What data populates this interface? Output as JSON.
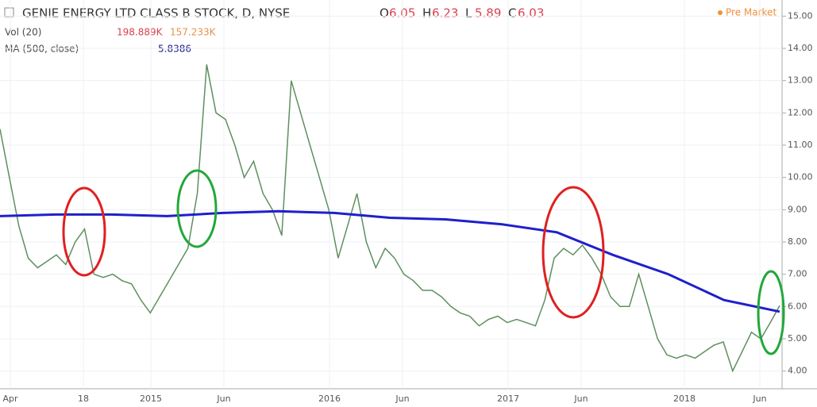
{
  "chart_data": {
    "type": "line",
    "title": "GENIE ENERGY LTD CLASS B STOCK, D, NYSE",
    "ohlc": [
      {
        "label": "O",
        "value": "6.05"
      },
      {
        "label": "H",
        "value": "6.23"
      },
      {
        "label": "L",
        "value": "5.89"
      },
      {
        "label": "C",
        "value": "6.03"
      }
    ],
    "volume_label": "Vol (20)",
    "volume_values": [
      "198.889K",
      "157.233K"
    ],
    "ma_label": "MA (500, close)",
    "ma_value": "5.8386",
    "session": "Pre Market",
    "x_labels": [
      "Apr",
      "18",
      "2015",
      "Jun",
      "2016",
      "Jun",
      "2017",
      "Jun",
      "2018",
      "Jun"
    ],
    "ylim": [
      3.45,
      15.5
    ],
    "yticks": [
      {
        "value": 15,
        "label": "15.00"
      },
      {
        "value": 14,
        "label": "14.00"
      },
      {
        "value": 13,
        "label": "13.00"
      },
      {
        "value": 12,
        "label": "12.00"
      },
      {
        "value": 11,
        "label": "11.00"
      },
      {
        "value": 10,
        "label": "10.00"
      },
      {
        "value": 9,
        "label": "9.00"
      },
      {
        "value": 8,
        "label": "8.00"
      },
      {
        "value": 7,
        "label": "7.00"
      },
      {
        "value": 6,
        "label": "6.00"
      },
      {
        "value": 5,
        "label": "5.00"
      },
      {
        "value": 4,
        "label": "4.00"
      }
    ],
    "grid": true,
    "series": [
      {
        "name": "Price",
        "color": "#5f8f5f",
        "values": [
          11.5,
          10.0,
          8.5,
          7.5,
          7.2,
          7.4,
          7.6,
          7.3,
          8.0,
          8.4,
          7.0,
          6.9,
          7.0,
          6.8,
          6.7,
          6.2,
          5.8,
          6.3,
          6.8,
          7.3,
          7.8,
          9.5,
          13.5,
          12.0,
          11.8,
          11.0,
          10.0,
          10.5,
          9.5,
          9.0,
          8.2,
          13.0,
          12.0,
          11.0,
          10.0,
          9.0,
          7.5,
          8.5,
          9.5,
          8.0,
          7.2,
          7.8,
          7.5,
          7.0,
          6.8,
          6.5,
          6.5,
          6.3,
          6.0,
          5.8,
          5.7,
          5.4,
          5.6,
          5.7,
          5.5,
          5.6,
          5.5,
          5.4,
          6.2,
          7.5,
          7.8,
          7.6,
          7.9,
          7.5,
          7.0,
          6.3,
          6.0,
          6.0,
          7.0,
          6.0,
          5.0,
          4.5,
          4.4,
          4.5,
          4.4,
          4.6,
          4.8,
          4.9,
          4.0,
          4.6,
          5.2,
          5.0,
          5.5,
          6.03
        ]
      },
      {
        "name": "MA",
        "color": "#1f1fcc",
        "values": [
          8.8,
          8.85,
          8.85,
          8.8,
          8.9,
          8.95,
          8.9,
          8.75,
          8.7,
          8.55,
          8.3,
          7.6,
          7.0,
          6.2,
          5.84
        ]
      }
    ]
  }
}
